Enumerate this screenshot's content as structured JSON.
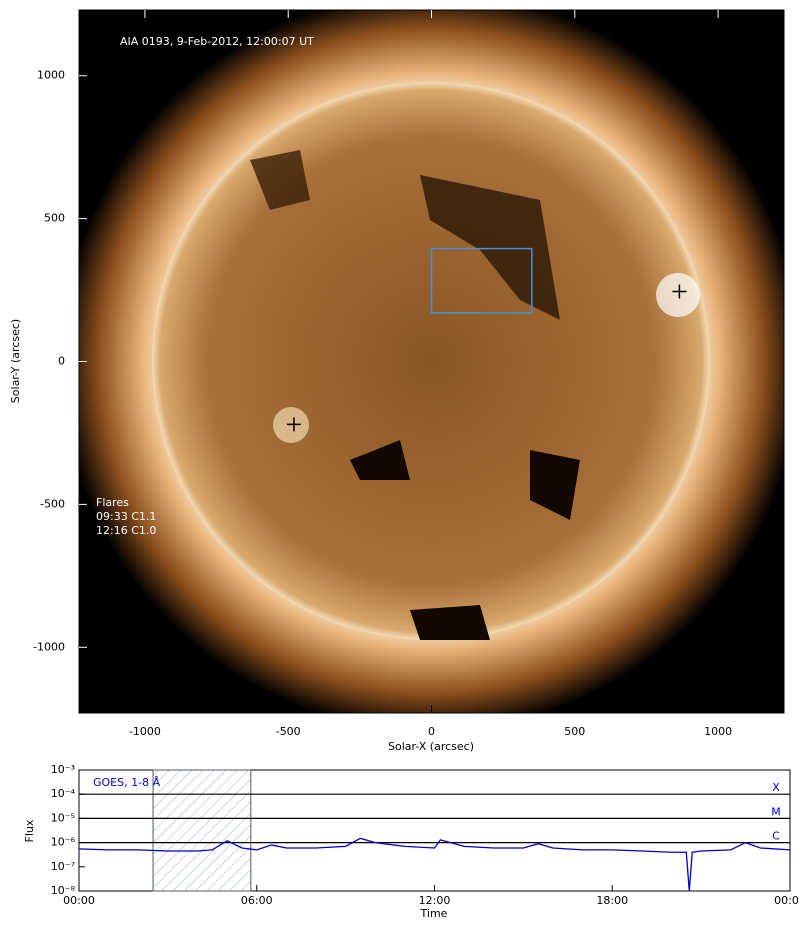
{
  "chart_data": [
    {
      "type": "image",
      "title": "AIA 0193, 9-Feb-2012, 12:00:07 UT",
      "xlabel": "Solar-X (arcsec)",
      "ylabel": "Solar-Y (arcsec)",
      "xlim": [
        -1230,
        1230
      ],
      "ylim": [
        -1230,
        1230
      ],
      "xticks": [
        -1000,
        -500,
        0,
        500,
        1000
      ],
      "yticks": [
        -1000,
        -500,
        0,
        500,
        1000
      ],
      "flare_title": "Flares",
      "flares": [
        "09:33 C1.1",
        "12:16 C1.0"
      ],
      "markers": {
        "x": [
          -480,
          865
        ],
        "y": [
          -220,
          245
        ]
      },
      "box": {
        "x": [
          0,
          350
        ],
        "y": [
          170,
          395
        ],
        "color": "#4a90d9"
      }
    },
    {
      "type": "line",
      "title": "GOES, 1-8 Å",
      "xlabel": "Time",
      "ylabel": "Flux",
      "log_y": true,
      "xlim": [
        0,
        24
      ],
      "ylim": [
        1e-08,
        0.001
      ],
      "xticks": [
        {
          "value": 0,
          "label": "00:00"
        },
        {
          "value": 6,
          "label": "06:00"
        },
        {
          "value": 12,
          "label": "12:00"
        },
        {
          "value": 18,
          "label": "18:00"
        },
        {
          "value": 24,
          "label": "00:00"
        }
      ],
      "yticks": [
        {
          "value": 1e-08,
          "label": "10⁻⁸"
        },
        {
          "value": 1e-07,
          "label": "10⁻⁷"
        },
        {
          "value": 1e-06,
          "label": "10⁻⁶"
        },
        {
          "value": 1e-05,
          "label": "10⁻⁵"
        },
        {
          "value": 0.0001,
          "label": "10⁻⁴"
        },
        {
          "value": 0.001,
          "label": "10⁻³"
        }
      ],
      "levels": [
        {
          "value": 0.0001,
          "label": "X"
        },
        {
          "value": 1e-05,
          "label": "M"
        },
        {
          "value": 1e-06,
          "label": "C"
        }
      ],
      "highlight_range": [
        2.5,
        5.8
      ],
      "x": [
        0,
        1,
        2,
        3,
        4,
        4.5,
        5,
        5.5,
        6,
        6.5,
        7,
        8,
        9,
        9.5,
        10,
        11,
        12,
        12.2,
        13,
        14,
        15,
        15.5,
        16,
        17,
        18,
        19,
        20,
        20.5,
        20.6,
        20.7,
        21,
        22,
        22.5,
        23,
        24
      ],
      "series": [
        {
          "name": "GOES, 1-8 Å",
          "color": "#0000cc",
          "values": [
            5.5e-07,
            5e-07,
            5e-07,
            4.5e-07,
            4.5e-07,
            5e-07,
            1.2e-06,
            6e-07,
            5e-07,
            8e-07,
            6e-07,
            6e-07,
            7e-07,
            1.5e-06,
            1e-06,
            7e-07,
            6e-07,
            1.3e-06,
            7e-07,
            6e-07,
            6e-07,
            9e-07,
            6e-07,
            5e-07,
            5e-07,
            4.5e-07,
            4e-07,
            4e-07,
            1e-08,
            4e-07,
            4.5e-07,
            5e-07,
            1e-06,
            6e-07,
            5e-07
          ]
        }
      ]
    }
  ]
}
